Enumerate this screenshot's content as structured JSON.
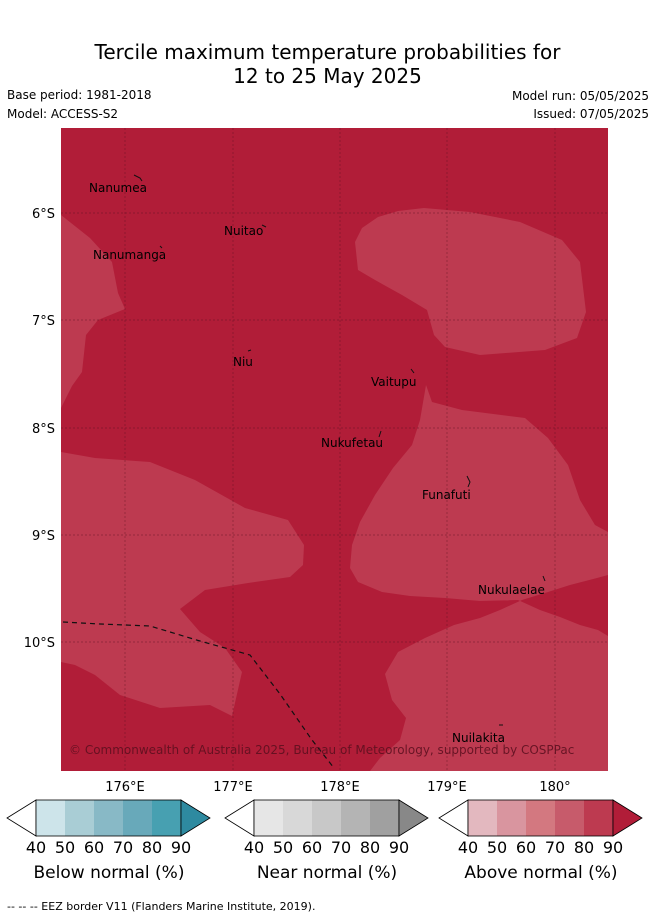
{
  "header": {
    "title_line1": "Tercile maximum temperature probabilities for",
    "title_line2": "12 to 25 May 2025",
    "base_period": "Base period: 1981-2018",
    "model": "Model: ACCESS-S2",
    "model_run": "Model run: 05/05/2025",
    "issued": "Issued: 07/05/2025"
  },
  "map": {
    "lat_labels": [
      "6°S",
      "7°S",
      "8°S",
      "9°S",
      "10°S"
    ],
    "lon_labels": [
      "176°E",
      "177°E",
      "178°E",
      "179°E",
      "180°"
    ],
    "places": [
      "Nanumea",
      "Nuitao",
      "Nanumanga",
      "Niu",
      "Vaitupu",
      "Nukufetau",
      "Funafuti",
      "Nukulaelae",
      "Nuilakita"
    ],
    "copyright": "© Commonwealth of Australia 2025, Bureau of Meteorology, supported by COSPPac",
    "colors": {
      "above_80": "#b11d38",
      "above_70": "#bd3a50"
    }
  },
  "colorbars": [
    {
      "title": "Below normal (%)",
      "ticks": [
        "40",
        "50",
        "60",
        "70",
        "80",
        "90"
      ],
      "colors": [
        "#ffffff",
        "#cde4ea",
        "#a9cdd5",
        "#88b9c6",
        "#68a9ba",
        "#47a0b1",
        "#2e8aa0"
      ]
    },
    {
      "title": "Near normal (%)",
      "ticks": [
        "40",
        "50",
        "60",
        "70",
        "80",
        "90"
      ],
      "colors": [
        "#ffffff",
        "#e6e6e6",
        "#d8d8d8",
        "#c8c8c8",
        "#b4b4b4",
        "#a0a0a0",
        "#888888"
      ]
    },
    {
      "title": "Above normal (%)",
      "ticks": [
        "40",
        "50",
        "60",
        "70",
        "80",
        "90"
      ],
      "colors": [
        "#ffffff",
        "#e3b8bf",
        "#d9959f",
        "#d37880",
        "#c75b6b",
        "#bd3a50",
        "#b11d38"
      ]
    }
  ],
  "footer": "-- -- -- EEZ border V11 (Flanders Marine Institute, 2019)."
}
